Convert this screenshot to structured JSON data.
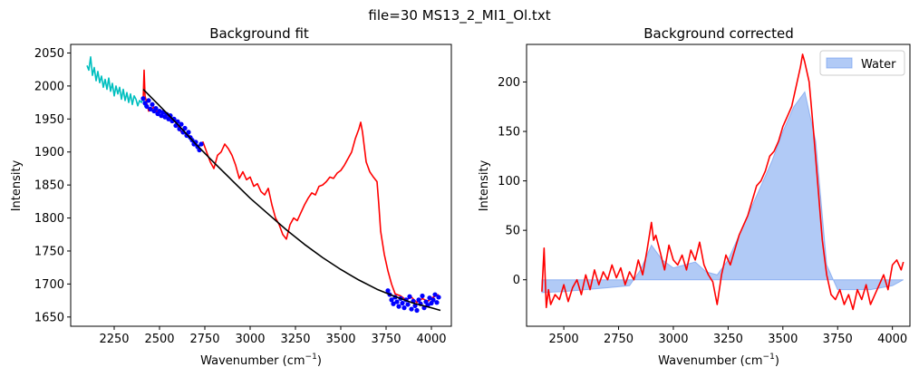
{
  "figure": {
    "suptitle": "file=30 MS13_2_MI1_Ol.txt"
  },
  "chart_data": [
    {
      "type": "line",
      "title": "Background fit",
      "xlabel": "Wavenumber (cm",
      "xlabel_sup": "−1",
      "xlabel_tail": ")",
      "ylabel": "Intensity",
      "xlim": [
        2010,
        4110
      ],
      "ylim": [
        1636,
        2063
      ],
      "x_ticks": [
        2250,
        2500,
        2750,
        3000,
        3250,
        3500,
        3750,
        4000
      ],
      "y_ticks": [
        1650,
        1700,
        1750,
        1800,
        1850,
        1900,
        1950,
        2000,
        2050
      ],
      "grid": false,
      "series": [
        {
          "role": "raw-spectrum-cyan",
          "color": "#00bfbf",
          "x": [
            2100,
            2110,
            2120,
            2130,
            2140,
            2150,
            2160,
            2170,
            2180,
            2190,
            2200,
            2210,
            2220,
            2230,
            2240,
            2250,
            2260,
            2270,
            2280,
            2290,
            2300,
            2310,
            2320,
            2330,
            2340,
            2350,
            2360,
            2370,
            2380,
            2390,
            2400,
            2410,
            2420
          ],
          "values": [
            2031,
            2024,
            2044,
            2016,
            2028,
            2008,
            2022,
            2005,
            2015,
            1998,
            2010,
            1995,
            2012,
            1992,
            2004,
            1985,
            2000,
            1988,
            1998,
            1980,
            1995,
            1978,
            1990,
            1975,
            1988,
            1972,
            1985,
            1980,
            1970,
            1978,
            1975,
            1982,
            1968
          ]
        },
        {
          "role": "raw-spectrum-red",
          "color": "#ff0000",
          "x": [
            2410,
            2415,
            2420,
            2440,
            2470,
            2500,
            2530,
            2560,
            2590,
            2620,
            2650,
            2680,
            2710,
            2740,
            2760,
            2780,
            2800,
            2820,
            2840,
            2860,
            2880,
            2900,
            2920,
            2940,
            2960,
            2980,
            3000,
            3020,
            3040,
            3060,
            3080,
            3100,
            3120,
            3140,
            3160,
            3180,
            3200,
            3220,
            3240,
            3260,
            3280,
            3300,
            3320,
            3340,
            3360,
            3380,
            3400,
            3420,
            3440,
            3460,
            3480,
            3500,
            3520,
            3540,
            3560,
            3580,
            3600,
            3610,
            3620,
            3640,
            3660,
            3680,
            3700,
            3710,
            3720,
            3740,
            3760,
            3780,
            3800,
            3830,
            3860,
            3890,
            3920,
            3950,
            3980,
            4010,
            4040
          ],
          "values": [
            1980,
            2024,
            1985,
            1962,
            1968,
            1955,
            1960,
            1950,
            1945,
            1930,
            1928,
            1920,
            1908,
            1915,
            1900,
            1885,
            1875,
            1895,
            1900,
            1912,
            1905,
            1895,
            1880,
            1860,
            1870,
            1858,
            1862,
            1848,
            1852,
            1840,
            1835,
            1845,
            1820,
            1800,
            1790,
            1775,
            1768,
            1790,
            1800,
            1796,
            1808,
            1820,
            1830,
            1838,
            1835,
            1848,
            1850,
            1855,
            1862,
            1860,
            1868,
            1872,
            1880,
            1890,
            1900,
            1920,
            1935,
            1945,
            1930,
            1885,
            1870,
            1862,
            1855,
            1820,
            1780,
            1745,
            1720,
            1700,
            1685,
            1682,
            1676,
            1680,
            1672,
            1678,
            1674,
            1680,
            1684
          ]
        },
        {
          "role": "baseline-points-blue",
          "color": "#0000ff",
          "marker": "circle",
          "x": [
            2410,
            2420,
            2430,
            2440,
            2450,
            2460,
            2470,
            2480,
            2490,
            2500,
            2510,
            2520,
            2530,
            2540,
            2550,
            2560,
            2570,
            2580,
            2590,
            2600,
            2610,
            2620,
            2630,
            2640,
            2650,
            2660,
            2670,
            2680,
            2690,
            2700,
            2710,
            2720,
            2730,
            3760,
            3770,
            3780,
            3790,
            3800,
            3810,
            3820,
            3830,
            3840,
            3850,
            3860,
            3870,
            3880,
            3890,
            3900,
            3910,
            3920,
            3930,
            3940,
            3950,
            3960,
            3970,
            3980,
            3990,
            4000,
            4010,
            4020,
            4030,
            4040
          ],
          "values": [
            1981,
            1974,
            1969,
            1978,
            1965,
            1972,
            1962,
            1966,
            1958,
            1962,
            1955,
            1960,
            1953,
            1957,
            1950,
            1955,
            1947,
            1950,
            1940,
            1946,
            1935,
            1942,
            1930,
            1936,
            1925,
            1930,
            1922,
            1918,
            1912,
            1915,
            1908,
            1903,
            1912,
            1690,
            1684,
            1676,
            1670,
            1680,
            1673,
            1666,
            1678,
            1671,
            1664,
            1676,
            1669,
            1681,
            1662,
            1674,
            1667,
            1660,
            1676,
            1670,
            1682,
            1664,
            1673,
            1668,
            1679,
            1671,
            1676,
            1684,
            1672,
            1680
          ]
        },
        {
          "role": "baseline-fit-black",
          "color": "#000000",
          "x": [
            2410,
            2500,
            2600,
            2700,
            2800,
            2900,
            3000,
            3100,
            3200,
            3300,
            3400,
            3500,
            3600,
            3700,
            3800,
            3900,
            4000,
            4050
          ],
          "values": [
            1995,
            1970,
            1942,
            1912,
            1884,
            1857,
            1830,
            1806,
            1782,
            1760,
            1740,
            1722,
            1706,
            1692,
            1681,
            1671,
            1664,
            1660
          ]
        }
      ]
    },
    {
      "type": "area",
      "title": "Background corrected",
      "xlabel": "Wavenumber (cm",
      "xlabel_sup": "−1",
      "xlabel_tail": ")",
      "ylabel": "Intensity",
      "xlim": [
        2330,
        4080
      ],
      "ylim": [
        -47,
        238
      ],
      "x_ticks": [
        2500,
        2750,
        3000,
        3250,
        3500,
        3750,
        4000
      ],
      "y_ticks": [
        0,
        50,
        100,
        150,
        200
      ],
      "grid": false,
      "legend": {
        "position": "top-right",
        "entries": [
          {
            "label": "Water",
            "color": "#6495ed"
          }
        ]
      },
      "series": [
        {
          "role": "water-fill",
          "color": "#6495ed",
          "x": [
            2400,
            2500,
            2600,
            2700,
            2800,
            2850,
            2900,
            2950,
            3000,
            3050,
            3100,
            3150,
            3200,
            3250,
            3300,
            3350,
            3400,
            3450,
            3500,
            3550,
            3600,
            3650,
            3700,
            3750,
            3800,
            3900,
            4000,
            4050
          ],
          "values": [
            -13,
            -12,
            -10,
            -8,
            -6,
            10,
            35,
            20,
            12,
            15,
            18,
            8,
            5,
            20,
            45,
            70,
            95,
            120,
            150,
            175,
            190,
            140,
            15,
            -10,
            -10,
            -10,
            -6,
            0
          ]
        },
        {
          "role": "corrected-spectrum-red",
          "color": "#ff0000",
          "x": [
            2400,
            2410,
            2420,
            2430,
            2440,
            2460,
            2480,
            2500,
            2520,
            2540,
            2560,
            2580,
            2600,
            2620,
            2640,
            2660,
            2680,
            2700,
            2720,
            2740,
            2760,
            2780,
            2800,
            2820,
            2840,
            2860,
            2880,
            2900,
            2910,
            2920,
            2940,
            2960,
            2980,
            3000,
            3020,
            3040,
            3060,
            3080,
            3100,
            3120,
            3140,
            3160,
            3180,
            3200,
            3220,
            3240,
            3260,
            3280,
            3300,
            3320,
            3340,
            3360,
            3380,
            3400,
            3420,
            3440,
            3460,
            3480,
            3500,
            3520,
            3540,
            3560,
            3570,
            3580,
            3590,
            3600,
            3620,
            3640,
            3660,
            3680,
            3700,
            3720,
            3740,
            3760,
            3780,
            3800,
            3820,
            3840,
            3860,
            3880,
            3900,
            3920,
            3940,
            3960,
            3980,
            4000,
            4020,
            4040,
            4050
          ],
          "values": [
            -12,
            32,
            -28,
            -10,
            -25,
            -15,
            -20,
            -5,
            -22,
            -8,
            0,
            -15,
            5,
            -10,
            10,
            -5,
            8,
            0,
            15,
            2,
            12,
            -5,
            8,
            0,
            20,
            5,
            30,
            58,
            40,
            45,
            28,
            10,
            35,
            20,
            15,
            25,
            10,
            30,
            20,
            38,
            15,
            5,
            -2,
            -25,
            5,
            25,
            15,
            30,
            45,
            55,
            65,
            80,
            95,
            100,
            110,
            125,
            130,
            140,
            155,
            165,
            175,
            195,
            205,
            215,
            228,
            220,
            200,
            150,
            95,
            40,
            5,
            -15,
            -20,
            -10,
            -25,
            -15,
            -30,
            -10,
            -20,
            -5,
            -25,
            -15,
            -5,
            5,
            -10,
            15,
            20,
            10,
            18
          ]
        }
      ]
    }
  ]
}
